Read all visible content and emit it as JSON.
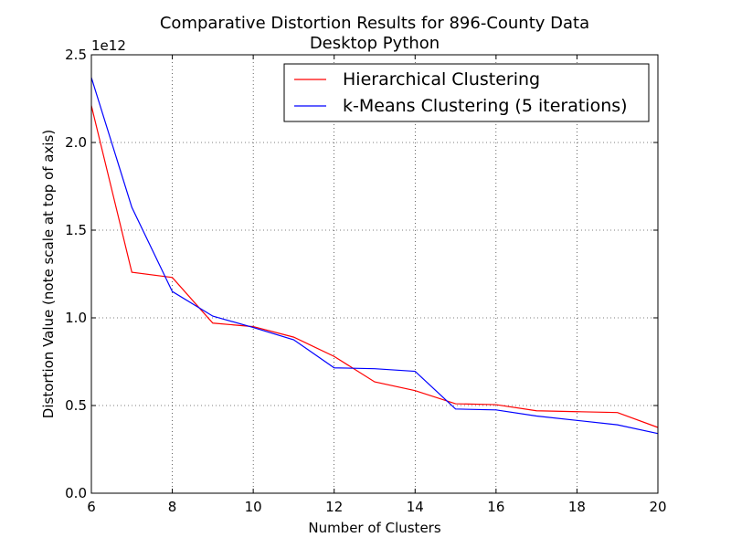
{
  "chart_data": {
    "type": "line",
    "title": "Comparative Distortion Results for 896-County Data",
    "subtitle": "Desktop Python",
    "xlabel": "Number of Clusters",
    "ylabel": "Distortion Value (note scale at top of axis)",
    "y_offset_label": "1e12",
    "xlim": [
      6,
      20
    ],
    "ylim": [
      0,
      2.5
    ],
    "y_scale_factor": 1000000000000.0,
    "grid": true,
    "legend_position": "top-right",
    "x_ticks": [
      6,
      8,
      10,
      12,
      14,
      16,
      18,
      20
    ],
    "x_tick_labels": [
      "6",
      "8",
      "10",
      "12",
      "14",
      "16",
      "18",
      "20"
    ],
    "y_ticks": [
      0,
      0.5,
      1.0,
      1.5,
      2.0,
      2.5
    ],
    "y_tick_labels": [
      "0.0",
      "0.5",
      "1.0",
      "1.5",
      "2.0",
      "2.5"
    ],
    "x": [
      6,
      7,
      8,
      9,
      10,
      11,
      12,
      13,
      14,
      15,
      16,
      17,
      18,
      19,
      20
    ],
    "series": [
      {
        "name": "Hierarchical Clustering",
        "color": "#ff0000",
        "values": [
          2.21,
          1.26,
          1.23,
          0.97,
          0.95,
          0.89,
          0.78,
          0.635,
          0.585,
          0.51,
          0.505,
          0.47,
          0.465,
          0.46,
          0.375
        ]
      },
      {
        "name": "k-Means Clustering (5 iterations)",
        "color": "#0000ff",
        "values": [
          2.37,
          1.63,
          1.15,
          1.01,
          0.945,
          0.875,
          0.715,
          0.71,
          0.695,
          0.48,
          0.475,
          0.44,
          0.415,
          0.39,
          0.34
        ]
      }
    ]
  }
}
